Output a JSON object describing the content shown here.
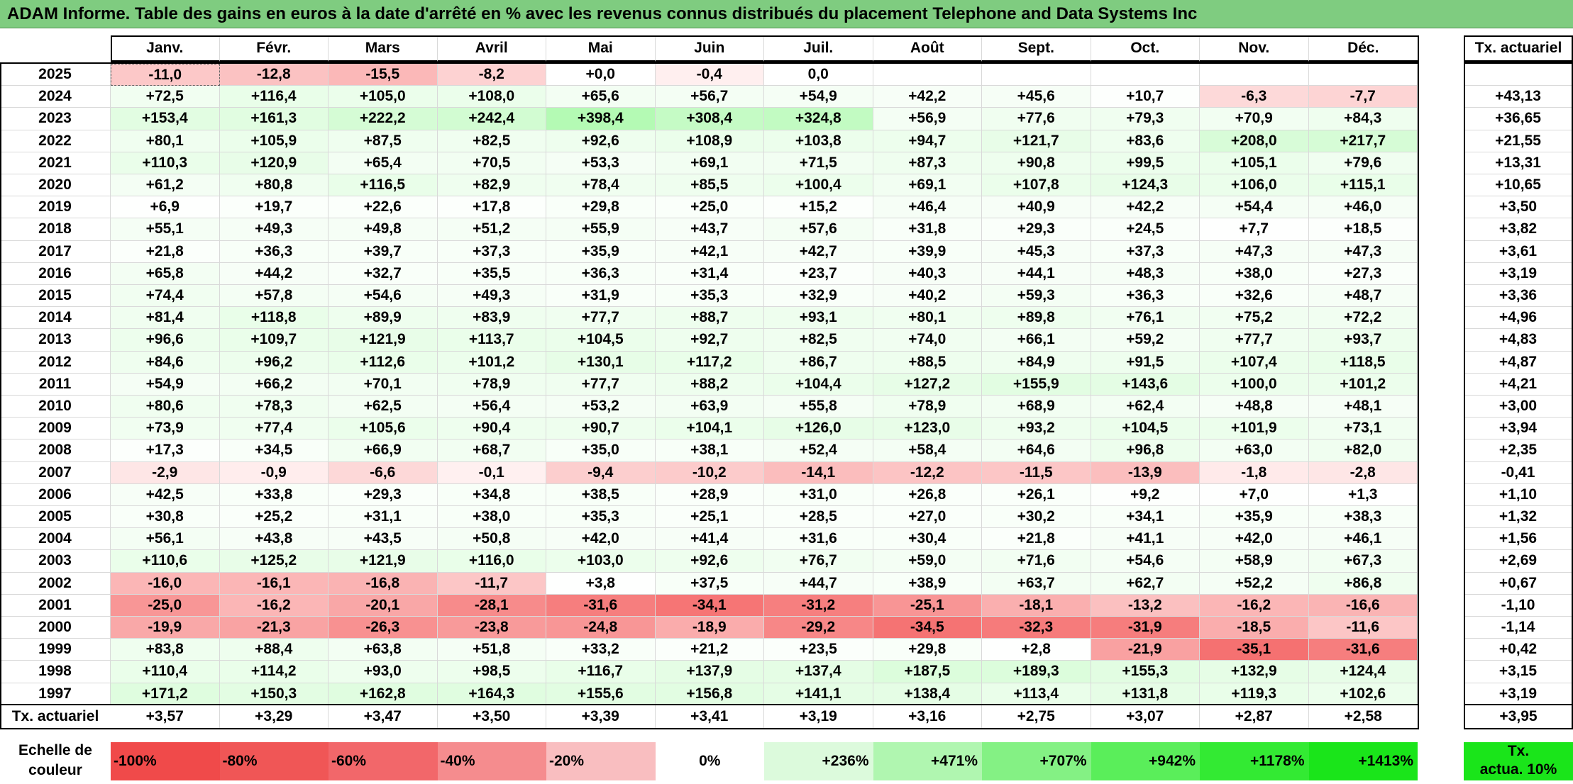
{
  "title": "ADAM Informe. Table des gains en euros à la date d'arrêté en % avec les revenus connus distribués du placement Telephone and Data Systems Inc",
  "months": [
    "Janv.",
    "Févr.",
    "Mars",
    "Avril",
    "Mai",
    "Juin",
    "Juil.",
    "Août",
    "Sept.",
    "Oct.",
    "Nov.",
    "Déc."
  ],
  "annual_header": "Tx. actuariel",
  "rows": [
    {
      "year": "2025",
      "values": [
        "-11,0",
        "-12,8",
        "-15,5",
        "-8,2",
        "+0,0",
        "-0,4",
        "0,0",
        "",
        "",
        "",
        "",
        ""
      ],
      "annual": ""
    },
    {
      "year": "2024",
      "values": [
        "+72,5",
        "+116,4",
        "+105,0",
        "+108,0",
        "+65,6",
        "+56,7",
        "+54,9",
        "+42,2",
        "+45,6",
        "+10,7",
        "-6,3",
        "-7,7"
      ],
      "annual": "+43,13"
    },
    {
      "year": "2023",
      "values": [
        "+153,4",
        "+161,3",
        "+222,2",
        "+242,4",
        "+398,4",
        "+308,4",
        "+324,8",
        "+56,9",
        "+77,6",
        "+79,3",
        "+70,9",
        "+84,3"
      ],
      "annual": "+36,65"
    },
    {
      "year": "2022",
      "values": [
        "+80,1",
        "+105,9",
        "+87,5",
        "+82,5",
        "+92,6",
        "+108,9",
        "+103,8",
        "+94,7",
        "+121,7",
        "+83,6",
        "+208,0",
        "+217,7"
      ],
      "annual": "+21,55"
    },
    {
      "year": "2021",
      "values": [
        "+110,3",
        "+120,9",
        "+65,4",
        "+70,5",
        "+53,3",
        "+69,1",
        "+71,5",
        "+87,3",
        "+90,8",
        "+99,5",
        "+105,1",
        "+79,6"
      ],
      "annual": "+13,31"
    },
    {
      "year": "2020",
      "values": [
        "+61,2",
        "+80,8",
        "+116,5",
        "+82,9",
        "+78,4",
        "+85,5",
        "+100,4",
        "+69,1",
        "+107,8",
        "+124,3",
        "+106,0",
        "+115,1"
      ],
      "annual": "+10,65"
    },
    {
      "year": "2019",
      "values": [
        "+6,9",
        "+19,7",
        "+22,6",
        "+17,8",
        "+29,8",
        "+25,0",
        "+15,2",
        "+46,4",
        "+40,9",
        "+42,2",
        "+54,4",
        "+46,0"
      ],
      "annual": "+3,50"
    },
    {
      "year": "2018",
      "values": [
        "+55,1",
        "+49,3",
        "+49,8",
        "+51,2",
        "+55,9",
        "+43,7",
        "+57,6",
        "+31,8",
        "+29,3",
        "+24,5",
        "+7,7",
        "+18,5"
      ],
      "annual": "+3,82"
    },
    {
      "year": "2017",
      "values": [
        "+21,8",
        "+36,3",
        "+39,7",
        "+37,3",
        "+35,9",
        "+42,1",
        "+42,7",
        "+39,9",
        "+45,3",
        "+37,3",
        "+47,3",
        "+47,3"
      ],
      "annual": "+3,61"
    },
    {
      "year": "2016",
      "values": [
        "+65,8",
        "+44,2",
        "+32,7",
        "+35,5",
        "+36,3",
        "+31,4",
        "+23,7",
        "+40,3",
        "+44,1",
        "+48,3",
        "+38,0",
        "+27,3"
      ],
      "annual": "+3,19"
    },
    {
      "year": "2015",
      "values": [
        "+74,4",
        "+57,8",
        "+54,6",
        "+49,3",
        "+31,9",
        "+35,3",
        "+32,9",
        "+40,2",
        "+59,3",
        "+36,3",
        "+32,6",
        "+48,7"
      ],
      "annual": "+3,36"
    },
    {
      "year": "2014",
      "values": [
        "+81,4",
        "+118,8",
        "+89,9",
        "+83,9",
        "+77,7",
        "+88,7",
        "+93,1",
        "+80,1",
        "+89,8",
        "+76,1",
        "+75,2",
        "+72,2"
      ],
      "annual": "+4,96"
    },
    {
      "year": "2013",
      "values": [
        "+96,6",
        "+109,7",
        "+121,9",
        "+113,7",
        "+104,5",
        "+92,7",
        "+82,5",
        "+74,0",
        "+66,1",
        "+59,2",
        "+77,7",
        "+93,7"
      ],
      "annual": "+4,83"
    },
    {
      "year": "2012",
      "values": [
        "+84,6",
        "+96,2",
        "+112,6",
        "+101,2",
        "+130,1",
        "+117,2",
        "+86,7",
        "+88,5",
        "+84,9",
        "+91,5",
        "+107,4",
        "+118,5"
      ],
      "annual": "+4,87"
    },
    {
      "year": "2011",
      "values": [
        "+54,9",
        "+66,2",
        "+70,1",
        "+78,9",
        "+77,7",
        "+88,2",
        "+104,4",
        "+127,2",
        "+155,9",
        "+143,6",
        "+100,0",
        "+101,2"
      ],
      "annual": "+4,21"
    },
    {
      "year": "2010",
      "values": [
        "+80,6",
        "+78,3",
        "+62,5",
        "+56,4",
        "+53,2",
        "+63,9",
        "+55,8",
        "+78,9",
        "+68,9",
        "+62,4",
        "+48,8",
        "+48,1"
      ],
      "annual": "+3,00"
    },
    {
      "year": "2009",
      "values": [
        "+73,9",
        "+77,4",
        "+105,6",
        "+90,4",
        "+90,7",
        "+104,1",
        "+126,0",
        "+123,0",
        "+93,2",
        "+104,5",
        "+101,9",
        "+73,1"
      ],
      "annual": "+3,94"
    },
    {
      "year": "2008",
      "values": [
        "+17,3",
        "+34,5",
        "+66,9",
        "+68,7",
        "+35,0",
        "+38,1",
        "+52,4",
        "+58,4",
        "+64,6",
        "+96,8",
        "+63,0",
        "+82,0"
      ],
      "annual": "+2,35"
    },
    {
      "year": "2007",
      "values": [
        "-2,9",
        "-0,9",
        "-6,6",
        "-0,1",
        "-9,4",
        "-10,2",
        "-14,1",
        "-12,2",
        "-11,5",
        "-13,9",
        "-1,8",
        "-2,8"
      ],
      "annual": "-0,41"
    },
    {
      "year": "2006",
      "values": [
        "+42,5",
        "+33,8",
        "+29,3",
        "+34,8",
        "+38,5",
        "+28,9",
        "+31,0",
        "+26,8",
        "+26,1",
        "+9,2",
        "+7,0",
        "+1,3"
      ],
      "annual": "+1,10"
    },
    {
      "year": "2005",
      "values": [
        "+30,8",
        "+25,2",
        "+31,1",
        "+38,0",
        "+35,3",
        "+25,1",
        "+28,5",
        "+27,0",
        "+30,2",
        "+34,1",
        "+35,9",
        "+38,3"
      ],
      "annual": "+1,32"
    },
    {
      "year": "2004",
      "values": [
        "+56,1",
        "+43,8",
        "+43,5",
        "+50,8",
        "+42,0",
        "+41,4",
        "+31,6",
        "+30,4",
        "+21,8",
        "+41,1",
        "+42,0",
        "+46,1"
      ],
      "annual": "+1,56"
    },
    {
      "year": "2003",
      "values": [
        "+110,6",
        "+125,2",
        "+121,9",
        "+116,0",
        "+103,0",
        "+92,6",
        "+76,7",
        "+59,0",
        "+71,6",
        "+54,6",
        "+58,9",
        "+67,3"
      ],
      "annual": "+2,69"
    },
    {
      "year": "2002",
      "values": [
        "-16,0",
        "-16,1",
        "-16,8",
        "-11,7",
        "+3,8",
        "+37,5",
        "+44,7",
        "+38,9",
        "+63,7",
        "+62,7",
        "+52,2",
        "+86,8"
      ],
      "annual": "+0,67"
    },
    {
      "year": "2001",
      "values": [
        "-25,0",
        "-16,2",
        "-20,1",
        "-28,1",
        "-31,6",
        "-34,1",
        "-31,2",
        "-25,1",
        "-18,1",
        "-13,2",
        "-16,2",
        "-16,6"
      ],
      "annual": "-1,10"
    },
    {
      "year": "2000",
      "values": [
        "-19,9",
        "-21,3",
        "-26,3",
        "-23,8",
        "-24,8",
        "-18,9",
        "-29,2",
        "-34,5",
        "-32,3",
        "-31,9",
        "-18,5",
        "-11,6"
      ],
      "annual": "-1,14"
    },
    {
      "year": "1999",
      "values": [
        "+83,8",
        "+88,4",
        "+63,8",
        "+51,8",
        "+33,2",
        "+21,2",
        "+23,5",
        "+29,8",
        "+2,8",
        "-21,9",
        "-35,1",
        "-31,6"
      ],
      "annual": "+0,42"
    },
    {
      "year": "1998",
      "values": [
        "+110,4",
        "+114,2",
        "+93,0",
        "+98,5",
        "+116,7",
        "+137,9",
        "+137,4",
        "+187,5",
        "+189,3",
        "+155,3",
        "+132,9",
        "+124,4"
      ],
      "annual": "+3,15"
    },
    {
      "year": "1997",
      "values": [
        "+171,2",
        "+150,3",
        "+162,8",
        "+164,3",
        "+155,6",
        "+156,8",
        "+141,1",
        "+138,4",
        "+113,4",
        "+131,8",
        "+119,3",
        "+102,6"
      ],
      "annual": "+3,19"
    }
  ],
  "footer": {
    "label": "Tx. actuariel",
    "values": [
      "+3,57",
      "+3,29",
      "+3,47",
      "+3,50",
      "+3,39",
      "+3,41",
      "+3,19",
      "+3,16",
      "+2,75",
      "+3,07",
      "+2,87",
      "+2,58"
    ],
    "annual": "+3,95"
  },
  "legend": {
    "label_line1": "Echelle de",
    "label_line2": "couleur",
    "items": [
      {
        "text": "-100%",
        "color": "#f04a4a"
      },
      {
        "text": "-80%",
        "color": "#f05656"
      },
      {
        "text": "-60%",
        "color": "#f2676a"
      },
      {
        "text": "-40%",
        "color": "#f58c8e"
      },
      {
        "text": "-20%",
        "color": "#f9bec0"
      },
      {
        "text": "0%",
        "color": "#ffffff"
      },
      {
        "text": "+236%",
        "color": "#dcfadc"
      },
      {
        "text": "+471%",
        "color": "#b0f6b0"
      },
      {
        "text": "+707%",
        "color": "#84f184"
      },
      {
        "text": "+942%",
        "color": "#5aee5a"
      },
      {
        "text": "+1178%",
        "color": "#33ea33"
      },
      {
        "text": "+1413%",
        "color": "#1ae51a"
      }
    ],
    "annual_line1": "Tx.",
    "annual_line2": "actua. 10%",
    "annual_color": "#1ae51a"
  }
}
